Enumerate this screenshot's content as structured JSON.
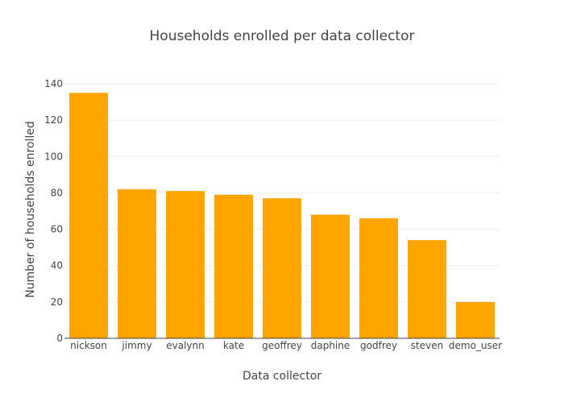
{
  "chart_data": {
    "type": "bar",
    "title": "Households enrolled per data collector",
    "xlabel": "Data collector",
    "ylabel": "Number of households enrolled",
    "categories": [
      "nickson",
      "jimmy",
      "evalynn",
      "kate",
      "geoffrey",
      "daphine",
      "godfrey",
      "steven",
      "demo_user"
    ],
    "values": [
      135,
      82,
      81,
      79,
      77,
      68,
      66,
      54,
      20
    ],
    "ylim": [
      0,
      140
    ],
    "yticks": [
      0,
      20,
      40,
      60,
      80,
      100,
      120,
      140
    ],
    "grid": true,
    "bar_color": "#FFA500"
  }
}
